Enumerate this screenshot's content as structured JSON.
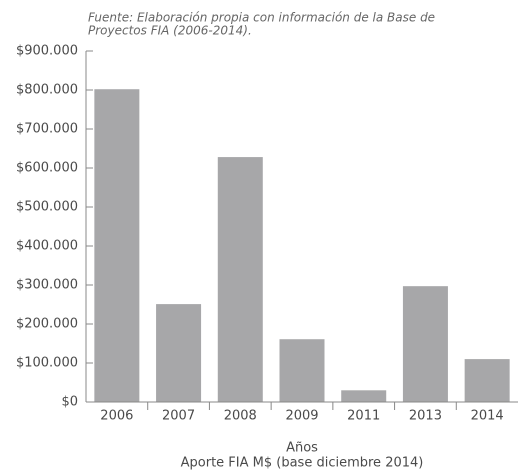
{
  "chart_data": {
    "type": "bar",
    "source": [
      "Fuente: Elaboración propia con información de la Base de",
      "Proyectos FIA (2006-2014)."
    ],
    "categories": [
      "2006",
      "2007",
      "2008",
      "2009",
      "2011",
      "2013",
      "2014"
    ],
    "values": [
      802000,
      251000,
      628000,
      161000,
      30000,
      297000,
      110000
    ],
    "color": "#a7a7a9",
    "ylim": [
      0,
      900000
    ],
    "yticks": [
      {
        "value": 0,
        "label": "$0"
      },
      {
        "value": 100000,
        "label": "$100.000"
      },
      {
        "value": 200000,
        "label": "$200.000"
      },
      {
        "value": 300000,
        "label": "$300.000"
      },
      {
        "value": 400000,
        "label": "$400.000"
      },
      {
        "value": 500000,
        "label": "$500.000"
      },
      {
        "value": 600000,
        "label": "$600.000"
      },
      {
        "value": 700000,
        "label": "$700.000"
      },
      {
        "value": 800000,
        "label": "$800.000"
      },
      {
        "value": 900000,
        "label": "$900.000"
      }
    ],
    "xlabel": "Años",
    "caption": "Aporte FIA M$ (base diciembre 2014)"
  }
}
